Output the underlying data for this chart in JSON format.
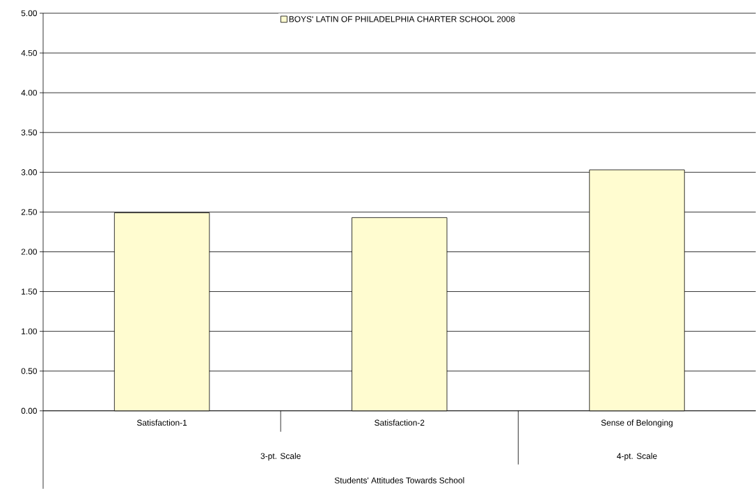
{
  "chart_data": {
    "type": "bar",
    "categories": [
      "Satisfaction-1",
      "Satisfaction-2",
      "Sense of Belonging"
    ],
    "series": [
      {
        "name": "BOYS' LATIN OF PHILADELPHIA CHARTER SCHOOL 2008",
        "color": "#fffcd0",
        "values": [
          2.49,
          2.43,
          3.03
        ]
      }
    ],
    "annotations": [
      "3-pt. Scale",
      "4-pt. Scale",
      "Students' Attitudes Towards School"
    ],
    "ylim": [
      0,
      5
    ],
    "yticks": [
      {
        "value": 0,
        "label": "0.00"
      },
      {
        "value": 0.5,
        "label": "0.50"
      },
      {
        "value": 1,
        "label": "1.00"
      },
      {
        "value": 1.5,
        "label": "1.50"
      },
      {
        "value": 2,
        "label": "2.00"
      },
      {
        "value": 2.5,
        "label": "2.50"
      },
      {
        "value": 3,
        "label": "3.00"
      },
      {
        "value": 3.5,
        "label": "3.50"
      },
      {
        "value": 4,
        "label": "4.00"
      },
      {
        "value": 4.5,
        "label": "4.50"
      },
      {
        "value": 5,
        "label": "5.00"
      }
    ],
    "grid": "y",
    "legend": "top right"
  }
}
